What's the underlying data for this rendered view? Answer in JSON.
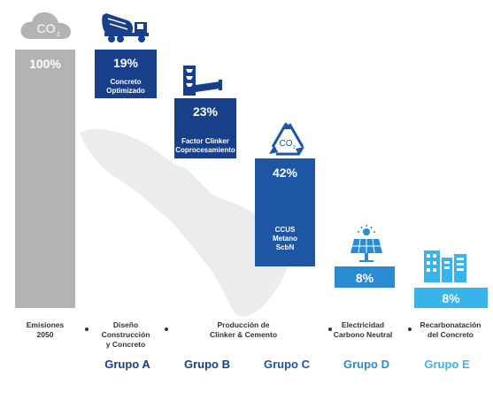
{
  "chart_data": {
    "type": "bar",
    "subtype": "waterfall",
    "categories": [
      "Emisiones 2050",
      "Concreto Optimizado",
      "Factor Clinker Coprocesamiento",
      "CCUS Metano ScbN",
      "8% Electricidad",
      "8% Recarbonatación"
    ],
    "values": [
      100,
      19,
      23,
      42,
      8,
      8
    ],
    "value_labels": [
      "100%",
      "19%",
      "23%",
      "42%",
      "8%",
      "8%"
    ],
    "bar_sublabels": [
      [],
      [
        "Concreto",
        "Optimizado"
      ],
      [
        "Factor Clinker",
        "Coprocesamiento"
      ],
      [
        "CCUS",
        "Metano",
        "ScbN"
      ],
      [],
      []
    ],
    "ylim": [
      0,
      100
    ],
    "colors": [
      "#b3b3b3",
      "#173f8a",
      "#173f8a",
      "#1d56a3",
      "#2a8bd5",
      "#38b4ea"
    ],
    "title": "",
    "xlabel": "",
    "ylabel": ""
  },
  "icon_labels": {
    "co2": "CO",
    "co2_sub": "2",
    "recycle_co2": "CO",
    "recycle_sub": "2"
  },
  "categories_text": [
    [
      "Emisiones",
      "2050"
    ],
    [
      "Diseño",
      "Construcción",
      "y Concreto"
    ],
    [
      "Producción de",
      "Clinker & Cemento"
    ],
    [
      "Electricidad",
      "Carbono Neutral"
    ],
    [
      "Recarbonatación",
      "del Concreto"
    ]
  ],
  "groups": [
    {
      "label": "Grupo A",
      "color": "#173f8a"
    },
    {
      "label": "Grupo B",
      "color": "#173f8a"
    },
    {
      "label": "Grupo C",
      "color": "#1d56a3"
    },
    {
      "label": "Grupo D",
      "color": "#2a8bd5"
    },
    {
      "label": "Grupo E",
      "color": "#38b4ea"
    }
  ]
}
